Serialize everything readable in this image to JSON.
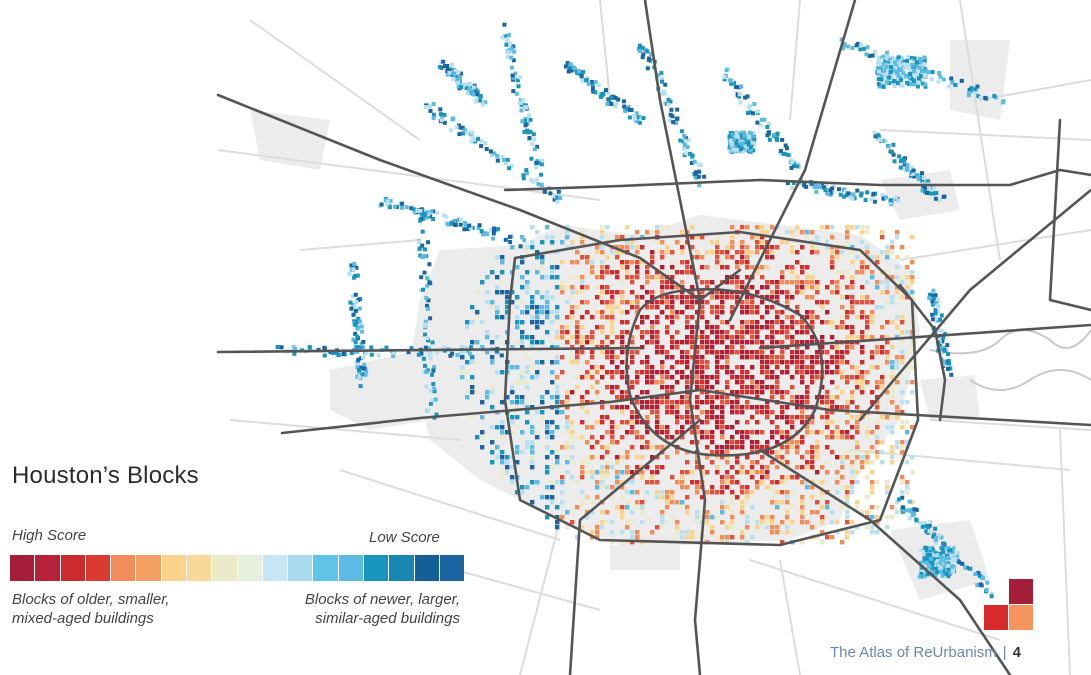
{
  "title": "Houston’s Blocks",
  "legend": {
    "high_label": "High Score",
    "low_label": "Low Score",
    "high_desc_line1": "Blocks of older, smaller,",
    "high_desc_line2": "mixed-aged buildings",
    "low_desc_line1": "Blocks of newer, larger,",
    "low_desc_line2": "similar-aged buildings",
    "colors": [
      "#a51e3a",
      "#b5223a",
      "#cc2b2f",
      "#d93a30",
      "#f08d58",
      "#f4a062",
      "#fcd38a",
      "#f8d997",
      "#ebeac9",
      "#e6efdb",
      "#c8e6f3",
      "#a9dbef",
      "#60c4e8",
      "#5bbbe3",
      "#1894bd",
      "#1887b4",
      "#135f98",
      "#1a65a2"
    ]
  },
  "footer": {
    "publication": "The Atlas of ReUrbanism",
    "page": "4"
  },
  "map": {
    "score_colors": [
      "#b01f34",
      "#cf2e2e",
      "#e0523c",
      "#f08d58",
      "#fcd38a",
      "#ebeac9",
      "#b9e0f0",
      "#5bbbe3",
      "#1894bd",
      "#1a65a2"
    ]
  }
}
